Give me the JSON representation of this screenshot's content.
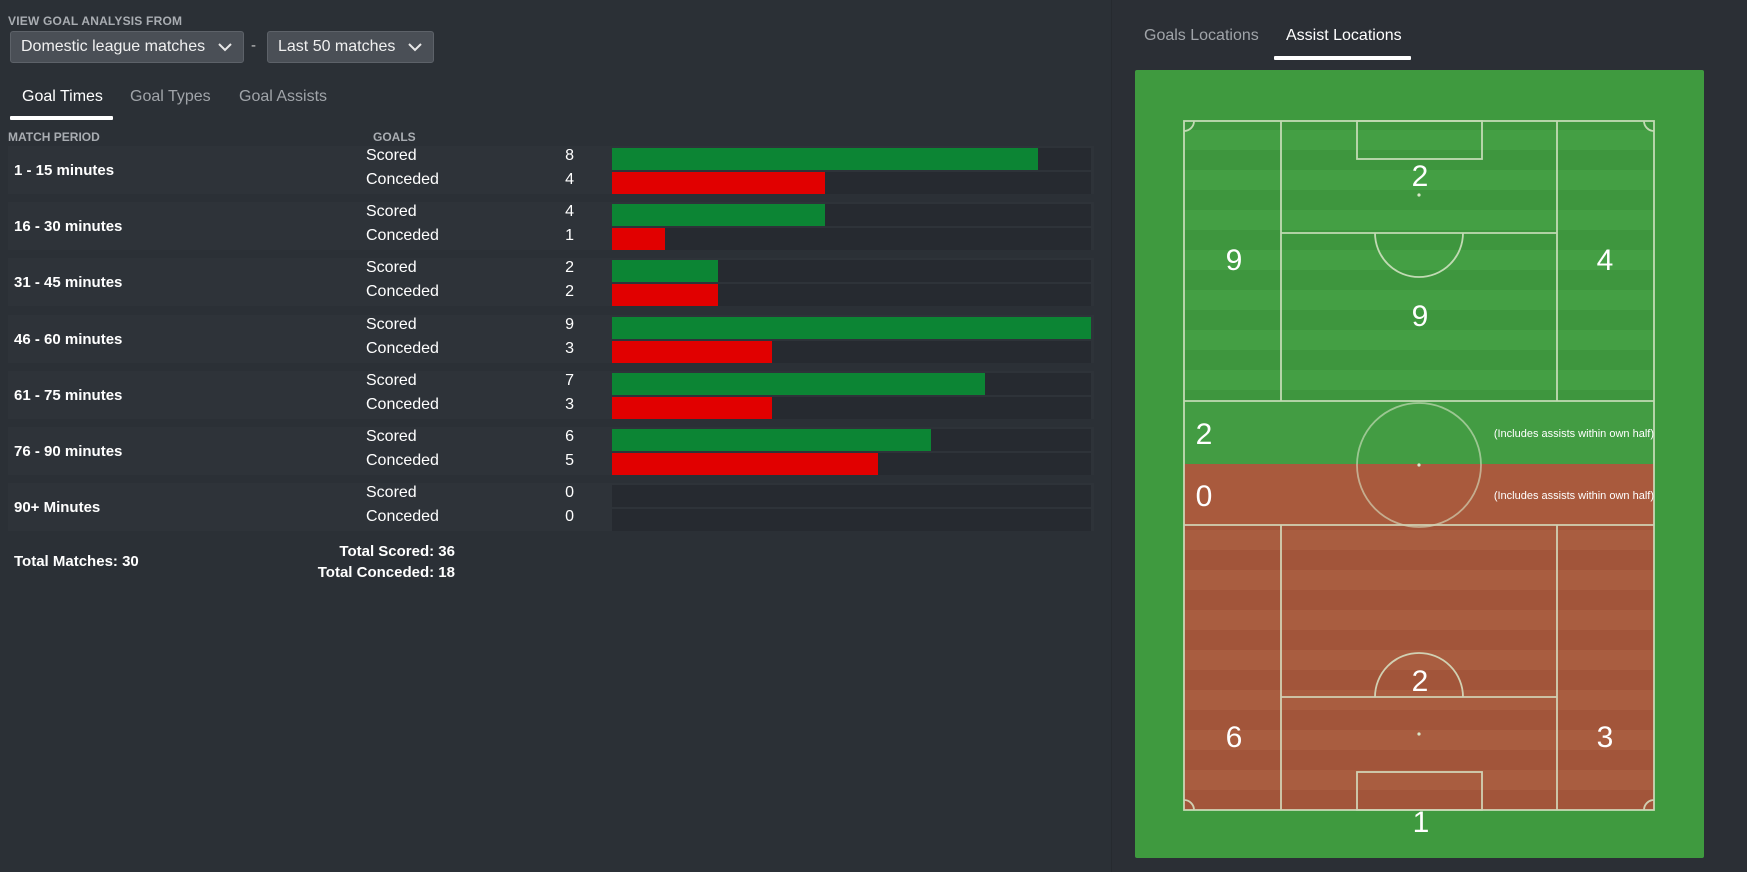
{
  "filter": {
    "label": "VIEW GOAL ANALYSIS FROM",
    "competition": "Domestic league matches",
    "separator": "-",
    "range": "Last 50 matches"
  },
  "tabs": [
    {
      "label": "Goal Times",
      "active": true
    },
    {
      "label": "Goal Types",
      "active": false
    },
    {
      "label": "Goal Assists",
      "active": false
    }
  ],
  "table": {
    "col_period": "MATCH PERIOD",
    "col_goals": "GOALS",
    "max_goals": 9,
    "periods": [
      {
        "label": "1 - 15 minutes",
        "scored_label": "Scored",
        "scored": 8,
        "conceded_label": "Conceded",
        "conceded": 4
      },
      {
        "label": "16 - 30 minutes",
        "scored_label": "Scored",
        "scored": 4,
        "conceded_label": "Conceded",
        "conceded": 1
      },
      {
        "label": "31 - 45 minutes",
        "scored_label": "Scored",
        "scored": 2,
        "conceded_label": "Conceded",
        "conceded": 2
      },
      {
        "label": "46 - 60 minutes",
        "scored_label": "Scored",
        "scored": 9,
        "conceded_label": "Conceded",
        "conceded": 3
      },
      {
        "label": "61 - 75 minutes",
        "scored_label": "Scored",
        "scored": 7,
        "conceded_label": "Conceded",
        "conceded": 3
      },
      {
        "label": "76 - 90 minutes",
        "scored_label": "Scored",
        "scored": 6,
        "conceded_label": "Conceded",
        "conceded": 5
      },
      {
        "label": "90+ Minutes",
        "scored_label": "Scored",
        "scored": 0,
        "conceded_label": "Conceded",
        "conceded": 0
      }
    ],
    "total_matches": "Total Matches: 30",
    "total_scored": "Total Scored: 36",
    "total_conceded": "Total Conceded: 18"
  },
  "right_tabs": [
    {
      "label": "Goals Locations",
      "active": false
    },
    {
      "label": "Assist Locations",
      "active": true
    }
  ],
  "pitch": {
    "colors": {
      "attack_green": "#3f9a3f",
      "defence_orange": "#a6573a"
    },
    "attacking": {
      "box_center": "2",
      "left_wing": "9",
      "right_wing": "4",
      "center": "9",
      "half": "2",
      "half_note": "(Includes assists within own half)"
    },
    "defending": {
      "half": "0",
      "half_note": "(Includes assists within own half)",
      "center": "2",
      "left_wing": "6",
      "right_wing": "3",
      "box_center": "1"
    }
  }
}
